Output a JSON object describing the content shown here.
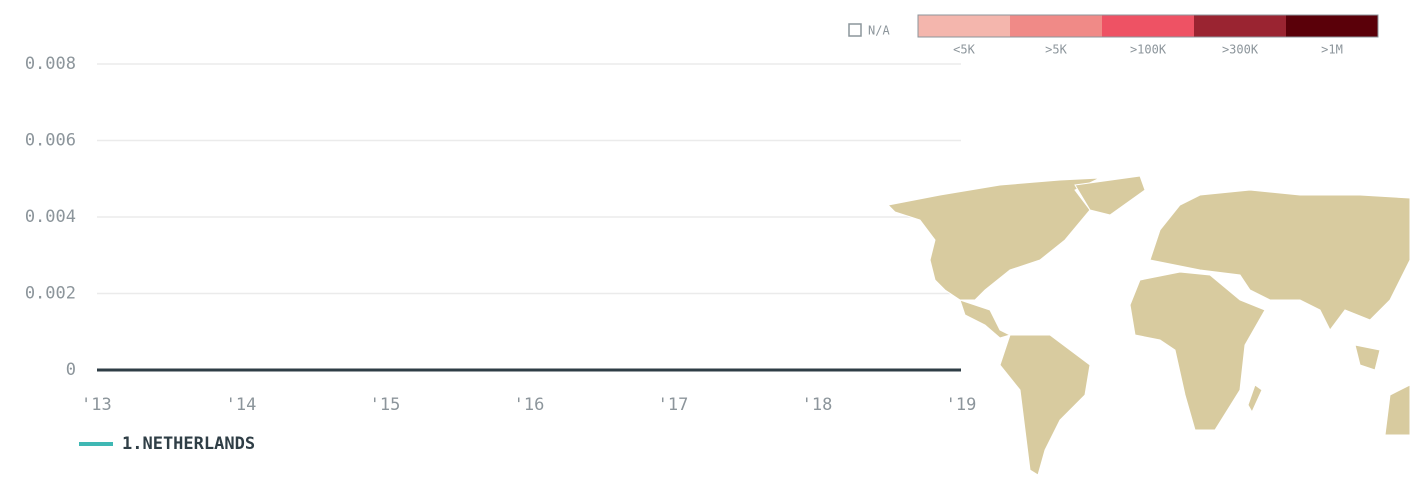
{
  "chart_data": {
    "type": "line",
    "categories": [
      "'13",
      "'14",
      "'15",
      "'16",
      "'17",
      "'18",
      "'19"
    ],
    "series": [
      {
        "name": "1.NETHERLANDS",
        "color": "#3fb8b4",
        "values": [
          0,
          0,
          0,
          0,
          0,
          0,
          0
        ]
      }
    ],
    "ylim": [
      0,
      0.008
    ],
    "yticks": [
      0,
      0.002,
      0.004,
      0.006,
      0.008
    ],
    "grid": true
  },
  "map_legend": {
    "na_label": "N/A",
    "bins": [
      {
        "label": "<5K",
        "color": "#f4b6ad"
      },
      {
        "label": ">5K",
        "color": "#f08a87"
      },
      {
        "label": ">100K",
        "color": "#ee5264"
      },
      {
        "label": ">300K",
        "color": "#9a2431"
      },
      {
        "label": ">1M",
        "color": "#5a0009"
      }
    ]
  }
}
